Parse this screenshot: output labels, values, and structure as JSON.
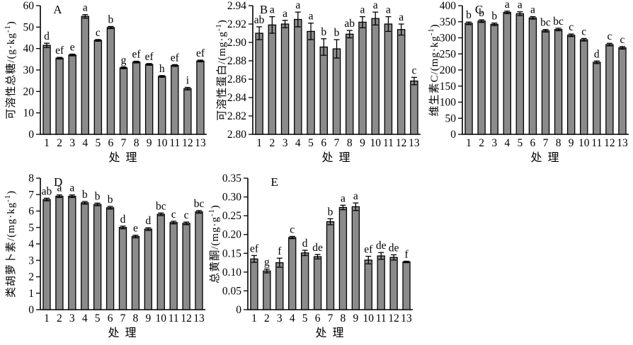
{
  "figure_title": "",
  "colors": {
    "bar_fill": "#8b8b8b",
    "bar_stroke": "#000000",
    "axis": "#000000",
    "background": "#ffffff"
  },
  "x_axis": {
    "label": "处 理",
    "categories": [
      "1",
      "2",
      "3",
      "4",
      "5",
      "6",
      "7",
      "8",
      "9",
      "10",
      "11",
      "12",
      "13"
    ]
  },
  "chart_data": [
    {
      "type": "bar",
      "panel_label": "A",
      "title": "",
      "xlabel": "处 理",
      "ylabel": "可溶性总糖/(g·kg⁻¹)",
      "categories": [
        "1",
        "2",
        "3",
        "4",
        "5",
        "6",
        "7",
        "8",
        "9",
        "10",
        "11",
        "12",
        "13"
      ],
      "values": [
        41.5,
        35.5,
        37.0,
        55.0,
        43.8,
        49.8,
        31.0,
        33.7,
        32.6,
        27.0,
        32.1,
        21.3,
        34.2
      ],
      "errors": [
        1.0,
        0.4,
        0.4,
        0.8,
        0.4,
        0.5,
        0.4,
        0.4,
        0.4,
        0.4,
        0.4,
        0.6,
        0.4
      ],
      "sig_letters": [
        "d",
        "ef",
        "e",
        "a",
        "c",
        "b",
        "g",
        "ef",
        "ef",
        "h",
        "ef",
        "i",
        "ef"
      ],
      "ylim": [
        0,
        60
      ],
      "yticks": [
        0,
        10,
        20,
        30,
        40,
        50,
        60
      ],
      "ytick_labels": [
        "0",
        "10",
        "20",
        "30",
        "40",
        "50",
        "60"
      ],
      "grid": false,
      "legend": null
    },
    {
      "type": "bar",
      "panel_label": "B",
      "title": "",
      "xlabel": "处 理",
      "ylabel": "可溶性蛋白/(mg·g⁻¹)",
      "categories": [
        "1",
        "2",
        "3",
        "4",
        "5",
        "6",
        "7",
        "8",
        "9",
        "10",
        "11",
        "12",
        "13"
      ],
      "values": [
        2.91,
        2.919,
        2.92,
        2.925,
        2.912,
        2.895,
        2.893,
        2.909,
        2.922,
        2.926,
        2.92,
        2.914,
        2.858
      ],
      "errors": [
        0.007,
        0.009,
        0.004,
        0.008,
        0.009,
        0.009,
        0.01,
        0.004,
        0.006,
        0.007,
        0.008,
        0.006,
        0.004
      ],
      "sig_letters": [
        "ab",
        "a",
        "a",
        "a",
        "a",
        "b",
        "b",
        "ab",
        "a",
        "a",
        "a",
        "a",
        "c"
      ],
      "ylim": [
        2.8,
        2.94
      ],
      "yticks": [
        2.8,
        2.82,
        2.84,
        2.86,
        2.88,
        2.9,
        2.92,
        2.94
      ],
      "ytick_labels": [
        "2.80",
        "2.82",
        "2.84",
        "2.86",
        "2.88",
        "2.90",
        "2.92",
        "2.94"
      ],
      "grid": false,
      "legend": null
    },
    {
      "type": "bar",
      "panel_label": "C",
      "title": "",
      "xlabel": "处 理",
      "ylabel": "维生素C/(mg·kg⁻¹)",
      "categories": [
        "1",
        "2",
        "3",
        "4",
        "5",
        "6",
        "7",
        "8",
        "9",
        "10",
        "11",
        "12",
        "13"
      ],
      "values": [
        345,
        352,
        342,
        379,
        375,
        362,
        322,
        326,
        308,
        294,
        224,
        279,
        269
      ],
      "errors": [
        4,
        4,
        4,
        4,
        6,
        4,
        4,
        4,
        4,
        4,
        4,
        4,
        4
      ],
      "sig_letters": [
        "b",
        "b",
        "b",
        "a",
        "a",
        "a",
        "bc",
        "bc",
        "c",
        "c",
        "d",
        "c",
        "c"
      ],
      "ylim": [
        0,
        400
      ],
      "yticks": [
        0,
        50,
        100,
        150,
        200,
        250,
        300,
        350,
        400
      ],
      "ytick_labels": [
        "0",
        "50",
        "100",
        "150",
        "200",
        "250",
        "300",
        "350",
        "400"
      ],
      "grid": false,
      "legend": null
    },
    {
      "type": "bar",
      "panel_label": "D",
      "title": "",
      "xlabel": "处 理",
      "ylabel": "类胡萝卜素/(mg·kg⁻¹)",
      "categories": [
        "1",
        "2",
        "3",
        "4",
        "5",
        "6",
        "7",
        "8",
        "9",
        "10",
        "11",
        "12",
        "13"
      ],
      "values": [
        6.7,
        6.9,
        6.9,
        6.5,
        6.4,
        6.2,
        5.0,
        4.45,
        4.9,
        5.8,
        5.3,
        5.25,
        5.95
      ],
      "errors": [
        0.08,
        0.08,
        0.08,
        0.08,
        0.08,
        0.08,
        0.08,
        0.08,
        0.08,
        0.08,
        0.08,
        0.08,
        0.08
      ],
      "sig_letters": [
        "ab",
        "a",
        "a",
        "b",
        "b",
        "b",
        "d",
        "e",
        "d",
        "bc",
        "c",
        "c",
        "bc"
      ],
      "ylim": [
        0,
        8
      ],
      "yticks": [
        0,
        1,
        2,
        3,
        4,
        5,
        6,
        7,
        8
      ],
      "ytick_labels": [
        "0",
        "1",
        "2",
        "3",
        "4",
        "5",
        "6",
        "7",
        "8"
      ],
      "grid": false,
      "legend": null
    },
    {
      "type": "bar",
      "panel_label": "E",
      "title": "",
      "xlabel": "处 理",
      "ylabel": "总黄酮/(mg·g⁻¹)",
      "categories": [
        "1",
        "2",
        "3",
        "4",
        "5",
        "6",
        "7",
        "8",
        "9",
        "10",
        "11",
        "12",
        "13"
      ],
      "values": [
        0.135,
        0.103,
        0.125,
        0.192,
        0.151,
        0.141,
        0.234,
        0.272,
        0.274,
        0.132,
        0.143,
        0.139,
        0.127
      ],
      "errors": [
        0.009,
        0.005,
        0.012,
        0.003,
        0.007,
        0.006,
        0.008,
        0.006,
        0.01,
        0.01,
        0.009,
        0.007,
        0.002
      ],
      "sig_letters": [
        "ef",
        "g",
        "f",
        "c",
        "d",
        "de",
        "b",
        "a",
        "a",
        "ef",
        "de",
        "de",
        "f"
      ],
      "ylim": [
        0,
        0.35
      ],
      "yticks": [
        0,
        0.05,
        0.1,
        0.15,
        0.2,
        0.25,
        0.3,
        0.35
      ],
      "ytick_labels": [
        "0",
        "0.05",
        "0.10",
        "0.15",
        "0.20",
        "0.25",
        "0.30",
        "0.35"
      ],
      "grid": false,
      "legend": null
    }
  ]
}
